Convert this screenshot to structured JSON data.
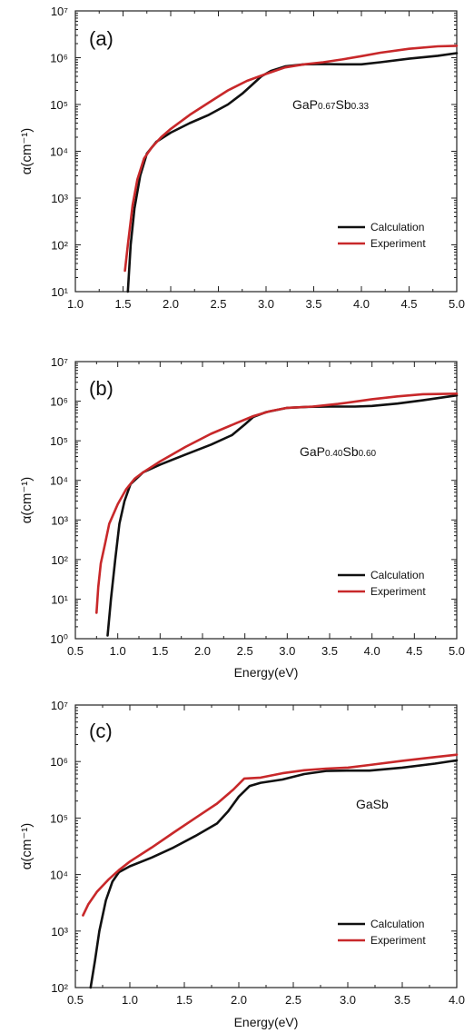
{
  "chart_data": [
    {
      "type": "line",
      "panel_label": "(a)",
      "annotation": "GaP0.67Sb0.33",
      "xlabel": "",
      "ylabel": "α(cm-1)",
      "xlim": [
        1.0,
        5.0
      ],
      "ylim": [
        10,
        10000000
      ],
      "yscale": "log",
      "x_ticks": [
        "1.0",
        "1.5",
        "2.0",
        "2.5",
        "3.0",
        "3.5",
        "4.0",
        "4.5",
        "5.0"
      ],
      "y_ticks": [
        10,
        100,
        1000,
        10000,
        100000,
        1000000,
        10000000
      ],
      "legend_position": "bottom-right",
      "colors": {
        "Calculation": "#111111",
        "Experiment": "#c8282a"
      },
      "series": [
        {
          "name": "Calculation",
          "x": [
            1.55,
            1.58,
            1.62,
            1.68,
            1.75,
            1.85,
            2.0,
            2.2,
            2.4,
            2.6,
            2.75,
            2.85,
            2.95,
            3.05,
            3.2,
            3.4,
            3.6,
            3.8,
            4.0,
            4.2,
            4.5,
            4.8,
            5.0
          ],
          "y": [
            10,
            100,
            600,
            3000,
            9000,
            16000,
            25000,
            40000,
            60000,
            100000,
            170000,
            260000,
            400000,
            520000,
            650000,
            720000,
            730000,
            720000,
            720000,
            800000,
            950000,
            1100000,
            1250000
          ]
        },
        {
          "name": "Experiment",
          "x": [
            1.52,
            1.55,
            1.6,
            1.65,
            1.72,
            1.8,
            1.9,
            2.0,
            2.2,
            2.4,
            2.6,
            2.8,
            3.0,
            3.2,
            3.4,
            3.6,
            3.8,
            4.0,
            4.2,
            4.5,
            4.8,
            5.0
          ],
          "y": [
            28,
            100,
            700,
            2500,
            7000,
            12000,
            20000,
            30000,
            60000,
            110000,
            200000,
            320000,
            450000,
            620000,
            720000,
            800000,
            920000,
            1080000,
            1280000,
            1550000,
            1750000,
            1800000
          ]
        }
      ]
    },
    {
      "type": "line",
      "panel_label": "(b)",
      "annotation": "GaP0.40Sb0.60",
      "xlabel": "Energy(eV)",
      "ylabel": "α(cm-1)",
      "xlim": [
        0.5,
        5.0
      ],
      "ylim": [
        1,
        10000000
      ],
      "yscale": "log",
      "x_ticks": [
        "0.5",
        "1.0",
        "1.5",
        "2.0",
        "2.5",
        "3.0",
        "3.5",
        "4.0",
        "4.5",
        "5.0"
      ],
      "y_ticks": [
        1,
        10,
        100,
        1000,
        10000,
        100000,
        1000000,
        10000000
      ],
      "legend_position": "bottom-right",
      "colors": {
        "Calculation": "#111111",
        "Experiment": "#c8282a"
      },
      "series": [
        {
          "name": "Calculation",
          "x": [
            0.88,
            0.92,
            0.97,
            1.02,
            1.08,
            1.15,
            1.3,
            1.5,
            1.8,
            2.1,
            2.35,
            2.5,
            2.6,
            2.75,
            3.0,
            3.25,
            3.5,
            3.8,
            4.0,
            4.3,
            4.6,
            5.0
          ],
          "y": [
            1.2,
            10,
            100,
            800,
            3000,
            8000,
            16000,
            25000,
            45000,
            80000,
            140000,
            260000,
            400000,
            530000,
            680000,
            720000,
            730000,
            730000,
            760000,
            870000,
            1050000,
            1400000
          ]
        },
        {
          "name": "Experiment",
          "x": [
            0.75,
            0.77,
            0.8,
            0.85,
            0.9,
            1.0,
            1.1,
            1.2,
            1.3,
            1.5,
            1.8,
            2.1,
            2.4,
            2.6,
            2.8,
            3.0,
            3.3,
            3.6,
            4.0,
            4.3,
            4.6,
            5.0
          ],
          "y": [
            4.5,
            20,
            80,
            250,
            800,
            2500,
            6000,
            11000,
            16000,
            30000,
            70000,
            150000,
            280000,
            420000,
            560000,
            680000,
            730000,
            850000,
            1120000,
            1320000,
            1500000,
            1550000
          ]
        }
      ]
    },
    {
      "type": "line",
      "panel_label": "(c)",
      "annotation": "GaSb",
      "xlabel": "Energy(eV)",
      "ylabel": "α(cm-1)",
      "xlim": [
        0.5,
        4.0
      ],
      "ylim": [
        100,
        10000000
      ],
      "yscale": "log",
      "x_ticks": [
        "0.5",
        "1.0",
        "1.5",
        "2.0",
        "2.5",
        "3.0",
        "3.5",
        "4.0"
      ],
      "y_ticks": [
        100,
        1000,
        10000,
        100000,
        1000000,
        10000000
      ],
      "legend_position": "bottom-right",
      "colors": {
        "Calculation": "#111111",
        "Experiment": "#c8282a"
      },
      "series": [
        {
          "name": "Calculation",
          "x": [
            0.64,
            0.68,
            0.72,
            0.78,
            0.84,
            0.9,
            1.0,
            1.2,
            1.4,
            1.6,
            1.8,
            1.9,
            2.0,
            2.1,
            2.2,
            2.4,
            2.6,
            2.8,
            3.0,
            3.2,
            3.5,
            3.8,
            4.0
          ],
          "y": [
            100,
            300,
            1000,
            3500,
            7500,
            11000,
            14000,
            20000,
            30000,
            48000,
            80000,
            130000,
            240000,
            370000,
            420000,
            480000,
            600000,
            680000,
            690000,
            690000,
            780000,
            920000,
            1050000
          ]
        },
        {
          "name": "Experiment",
          "x": [
            0.57,
            0.62,
            0.7,
            0.8,
            0.9,
            1.0,
            1.2,
            1.4,
            1.6,
            1.8,
            1.95,
            2.05,
            2.2,
            2.4,
            2.6,
            2.8,
            3.0,
            3.2,
            3.5,
            3.8,
            4.0
          ],
          "y": [
            1900,
            3000,
            5000,
            8000,
            12000,
            17000,
            30000,
            55000,
            100000,
            180000,
            320000,
            500000,
            520000,
            620000,
            700000,
            750000,
            780000,
            870000,
            1030000,
            1200000,
            1320000
          ]
        }
      ]
    }
  ],
  "legend": {
    "calculation": "Calculation",
    "experiment": "Experiment"
  }
}
